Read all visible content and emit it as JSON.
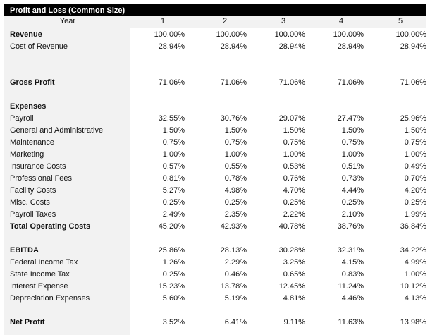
{
  "title": "Profit and Loss (Common Size)",
  "year_label": "Year",
  "years": [
    "1",
    "2",
    "3",
    "4",
    "5"
  ],
  "rows": [
    {
      "label": "Revenue",
      "bold": true,
      "values": [
        "100.00%",
        "100.00%",
        "100.00%",
        "100.00%",
        "100.00%"
      ]
    },
    {
      "label": "Cost of Revenue",
      "bold": false,
      "values": [
        "28.94%",
        "28.94%",
        "28.94%",
        "28.94%",
        "28.94%"
      ]
    },
    null,
    null,
    {
      "label": "Gross Profit",
      "bold": true,
      "values": [
        "71.06%",
        "71.06%",
        "71.06%",
        "71.06%",
        "71.06%"
      ]
    },
    null,
    {
      "label": "Expenses",
      "bold": true,
      "values": []
    },
    {
      "label": "Payroll",
      "bold": false,
      "values": [
        "32.55%",
        "30.76%",
        "29.07%",
        "27.47%",
        "25.96%"
      ]
    },
    {
      "label": "General and Administrative",
      "bold": false,
      "values": [
        "1.50%",
        "1.50%",
        "1.50%",
        "1.50%",
        "1.50%"
      ]
    },
    {
      "label": "Maintenance",
      "bold": false,
      "values": [
        "0.75%",
        "0.75%",
        "0.75%",
        "0.75%",
        "0.75%"
      ]
    },
    {
      "label": "Marketing",
      "bold": false,
      "values": [
        "1.00%",
        "1.00%",
        "1.00%",
        "1.00%",
        "1.00%"
      ]
    },
    {
      "label": "Insurance Costs",
      "bold": false,
      "values": [
        "0.57%",
        "0.55%",
        "0.53%",
        "0.51%",
        "0.49%"
      ]
    },
    {
      "label": "Professional Fees",
      "bold": false,
      "values": [
        "0.81%",
        "0.78%",
        "0.76%",
        "0.73%",
        "0.70%"
      ]
    },
    {
      "label": "Facility Costs",
      "bold": false,
      "values": [
        "5.27%",
        "4.98%",
        "4.70%",
        "4.44%",
        "4.20%"
      ]
    },
    {
      "label": "Misc. Costs",
      "bold": false,
      "values": [
        "0.25%",
        "0.25%",
        "0.25%",
        "0.25%",
        "0.25%"
      ]
    },
    {
      "label": "Payroll Taxes",
      "bold": false,
      "values": [
        "2.49%",
        "2.35%",
        "2.22%",
        "2.10%",
        "1.99%"
      ]
    },
    {
      "label": "Total Operating Costs",
      "bold": true,
      "values": [
        "45.20%",
        "42.93%",
        "40.78%",
        "38.76%",
        "36.84%"
      ]
    },
    null,
    {
      "label": "EBITDA",
      "bold": true,
      "values": [
        "25.86%",
        "28.13%",
        "30.28%",
        "32.31%",
        "34.22%"
      ]
    },
    {
      "label": "Federal Income Tax",
      "bold": false,
      "values": [
        "1.26%",
        "2.29%",
        "3.25%",
        "4.15%",
        "4.99%"
      ]
    },
    {
      "label": "State Income Tax",
      "bold": false,
      "values": [
        "0.25%",
        "0.46%",
        "0.65%",
        "0.83%",
        "1.00%"
      ]
    },
    {
      "label": "Interest Expense",
      "bold": false,
      "values": [
        "15.23%",
        "13.78%",
        "12.45%",
        "11.24%",
        "10.12%"
      ]
    },
    {
      "label": "Depreciation Expenses",
      "bold": false,
      "values": [
        "5.60%",
        "5.19%",
        "4.81%",
        "4.46%",
        "4.13%"
      ]
    },
    null,
    {
      "label": "Net Profit",
      "bold": true,
      "values": [
        "3.52%",
        "6.41%",
        "9.11%",
        "11.63%",
        "13.98%"
      ]
    }
  ]
}
